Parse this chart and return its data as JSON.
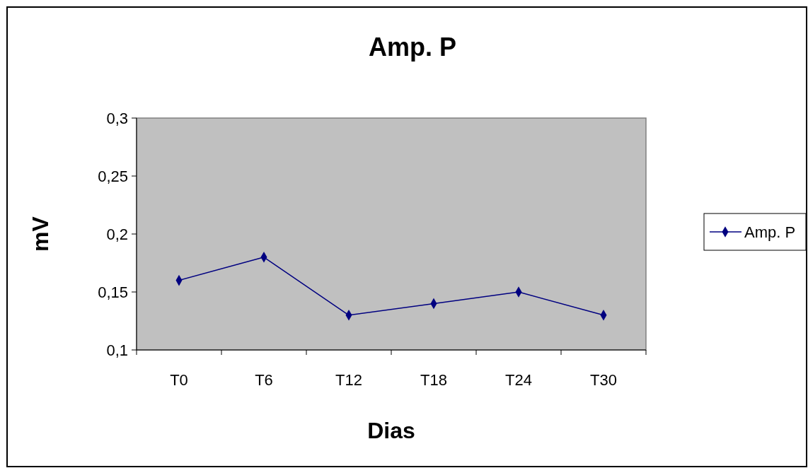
{
  "chart_data": {
    "type": "line",
    "title": "Amp. P",
    "xlabel": "Dias",
    "ylabel": "mV",
    "categories": [
      "T0",
      "T6",
      "T12",
      "T18",
      "T24",
      "T30"
    ],
    "series": [
      {
        "name": "Amp. P",
        "color": "#000080",
        "values": [
          0.16,
          0.18,
          0.13,
          0.14,
          0.15,
          0.13
        ]
      }
    ],
    "ylim": [
      0.1,
      0.3
    ],
    "yticks": [
      {
        "value": 0.1,
        "label": "0,1"
      },
      {
        "value": 0.15,
        "label": "0,15"
      },
      {
        "value": 0.2,
        "label": "0,2"
      },
      {
        "value": 0.25,
        "label": "0,25"
      },
      {
        "value": 0.3,
        "label": "0,3"
      }
    ],
    "legend": "right",
    "marker": "diamond",
    "line_style": "solid"
  }
}
